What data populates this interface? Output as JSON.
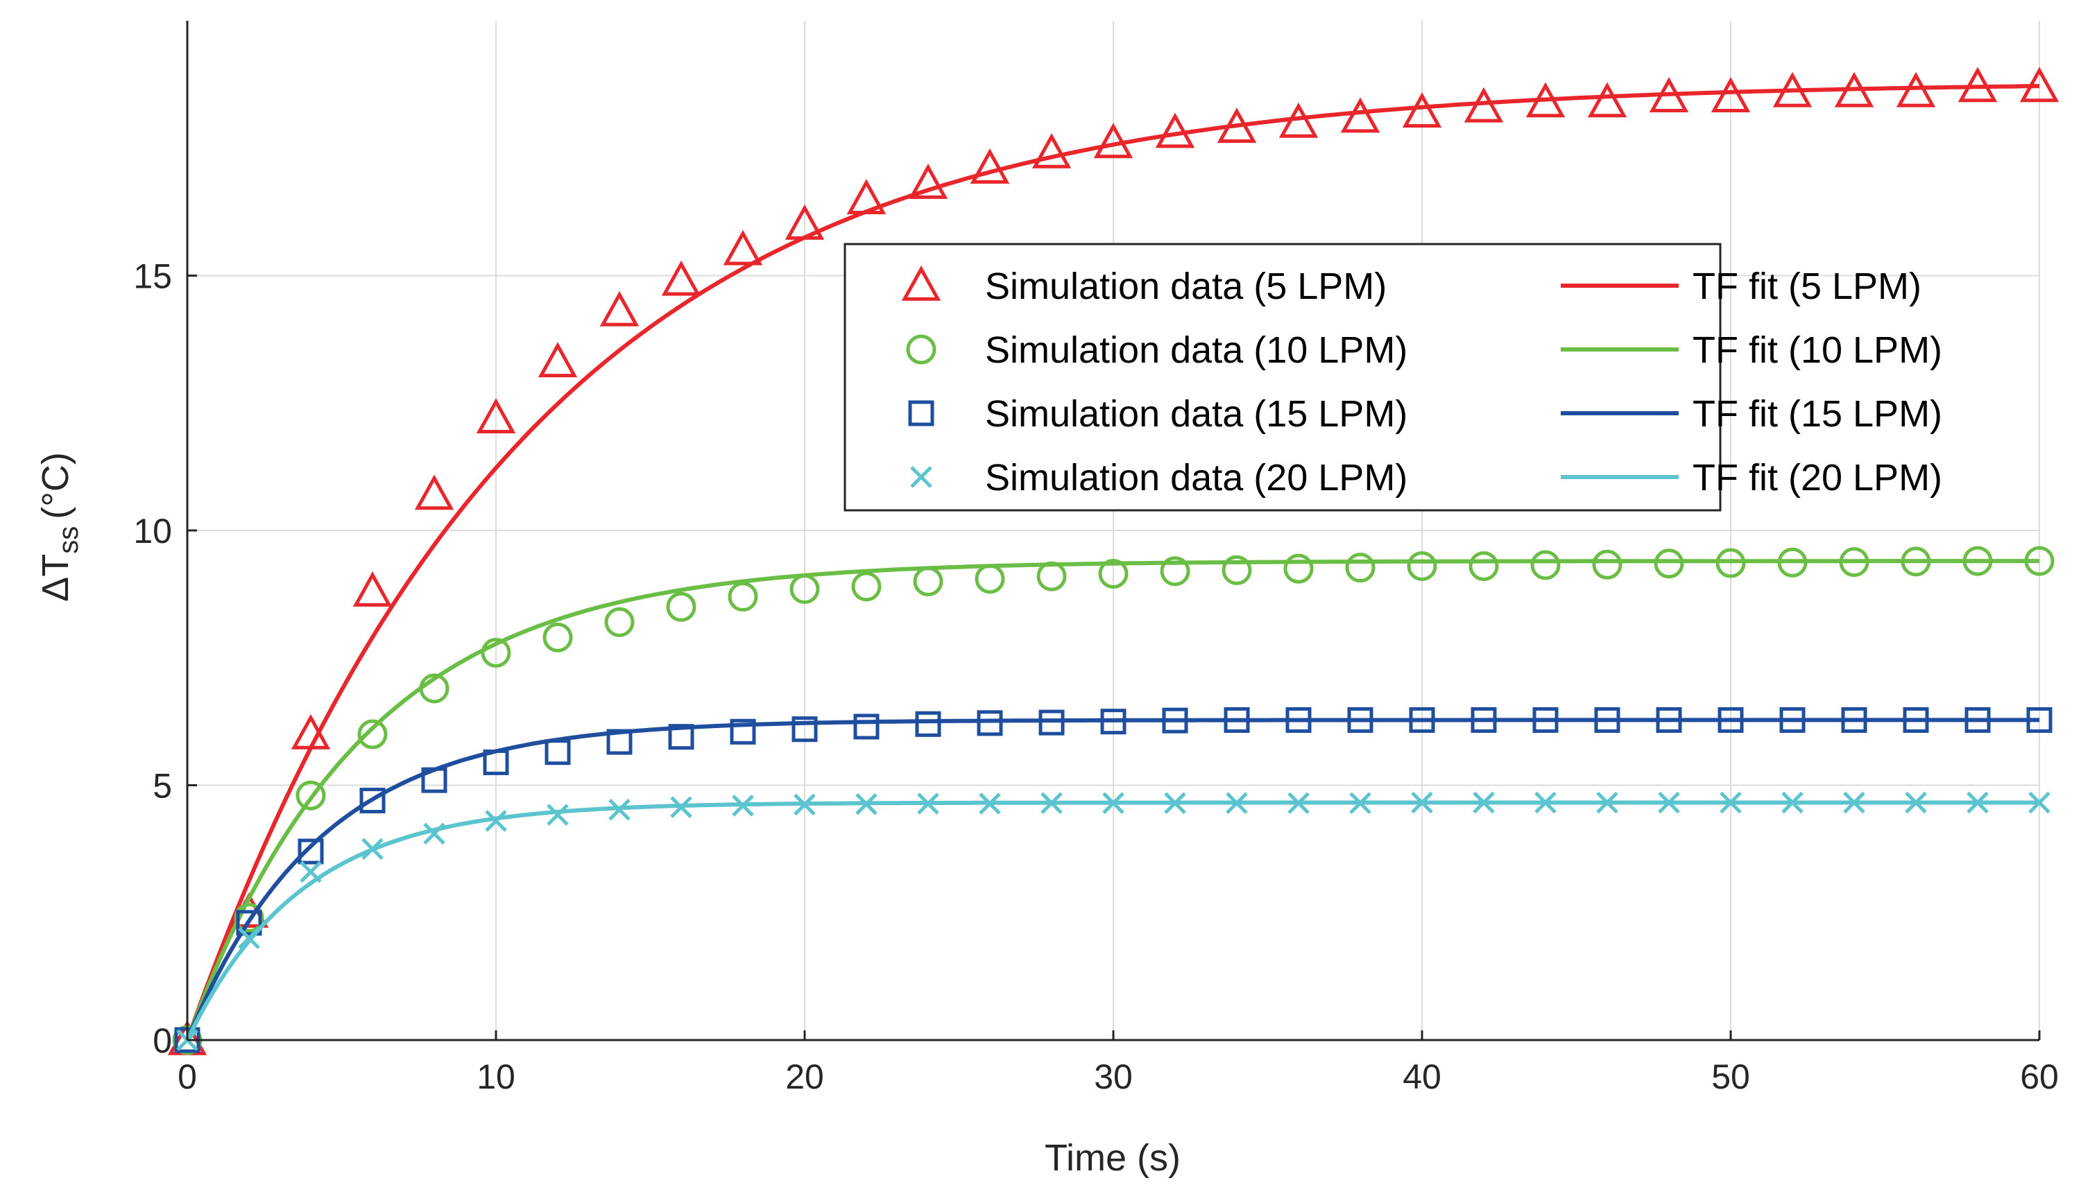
{
  "chart_data": {
    "type": "scatter+line",
    "title": "",
    "xlabel": "Time (s)",
    "ylabel": {
      "main": "ΔT",
      "sub": "ss",
      "unit": "(°C)"
    },
    "xlim": [
      0,
      60
    ],
    "ylim": [
      0,
      20
    ],
    "xticks": [
      0,
      10,
      20,
      30,
      40,
      50,
      60
    ],
    "yticks": [
      0,
      5,
      10,
      15
    ],
    "grid": true,
    "legend_position": "center-right",
    "series": [
      {
        "name": "Simulation data (5 LPM)",
        "fit_name": "TF fit (5 LPM)",
        "color": "#E8262B",
        "marker": "triangle",
        "x": [
          0,
          2,
          4,
          6,
          8,
          10,
          12,
          14,
          16,
          18,
          20,
          22,
          24,
          26,
          28,
          30,
          32,
          34,
          36,
          38,
          40,
          42,
          44,
          46,
          48,
          50,
          52,
          54,
          56,
          58,
          60
        ],
        "y": [
          0,
          2.5,
          6.0,
          8.8,
          10.7,
          12.2,
          13.3,
          14.3,
          14.9,
          15.5,
          16.0,
          16.5,
          16.8,
          17.1,
          17.4,
          17.6,
          17.8,
          17.9,
          18.0,
          18.1,
          18.2,
          18.3,
          18.4,
          18.4,
          18.5,
          18.5,
          18.6,
          18.6,
          18.6,
          18.7,
          18.7
        ],
        "fit": {
          "k": 18.8,
          "tau": 11.0
        }
      },
      {
        "name": "Simulation data (10 LPM)",
        "fit_name": "TF fit (10 LPM)",
        "color": "#6ABD45",
        "marker": "circle",
        "x": [
          0,
          2,
          4,
          6,
          8,
          10,
          12,
          14,
          16,
          18,
          20,
          22,
          24,
          26,
          28,
          30,
          32,
          34,
          36,
          38,
          40,
          42,
          44,
          46,
          48,
          50,
          52,
          54,
          56,
          58,
          60
        ],
        "y": [
          0,
          2.4,
          4.8,
          6.0,
          6.9,
          7.6,
          7.9,
          8.2,
          8.5,
          8.7,
          8.85,
          8.9,
          9.0,
          9.05,
          9.1,
          9.15,
          9.2,
          9.22,
          9.25,
          9.27,
          9.3,
          9.3,
          9.32,
          9.33,
          9.35,
          9.36,
          9.37,
          9.38,
          9.39,
          9.4,
          9.4
        ],
        "fit": {
          "k": 9.4,
          "tau": 5.7
        }
      },
      {
        "name": "Simulation data (15 LPM)",
        "fit_name": "TF fit (15 LPM)",
        "color": "#1F4E9E",
        "marker": "square",
        "x": [
          0,
          2,
          4,
          6,
          8,
          10,
          12,
          14,
          16,
          18,
          20,
          22,
          24,
          26,
          28,
          30,
          32,
          34,
          36,
          38,
          40,
          42,
          44,
          46,
          48,
          50,
          52,
          54,
          56,
          58,
          60
        ],
        "y": [
          0,
          2.3,
          3.7,
          4.7,
          5.1,
          5.45,
          5.65,
          5.85,
          5.95,
          6.05,
          6.1,
          6.15,
          6.2,
          6.22,
          6.23,
          6.25,
          6.27,
          6.28,
          6.28,
          6.28,
          6.28,
          6.28,
          6.28,
          6.28,
          6.28,
          6.28,
          6.28,
          6.28,
          6.28,
          6.28,
          6.28
        ],
        "fit": {
          "k": 6.28,
          "tau": 4.3
        }
      },
      {
        "name": "Simulation data (20 LPM)",
        "fit_name": "TF fit (20 LPM)",
        "color": "#5BC4CE",
        "marker": "cross",
        "x": [
          0,
          2,
          4,
          6,
          8,
          10,
          12,
          14,
          16,
          18,
          20,
          22,
          24,
          26,
          28,
          30,
          32,
          34,
          36,
          38,
          40,
          42,
          44,
          46,
          48,
          50,
          52,
          54,
          56,
          58,
          60
        ],
        "y": [
          0,
          2.0,
          3.3,
          3.75,
          4.05,
          4.3,
          4.42,
          4.52,
          4.57,
          4.6,
          4.62,
          4.63,
          4.64,
          4.64,
          4.65,
          4.65,
          4.65,
          4.65,
          4.65,
          4.65,
          4.66,
          4.66,
          4.66,
          4.66,
          4.66,
          4.66,
          4.66,
          4.66,
          4.66,
          4.66,
          4.66
        ],
        "fit": {
          "k": 4.66,
          "tau": 3.7
        }
      }
    ]
  }
}
